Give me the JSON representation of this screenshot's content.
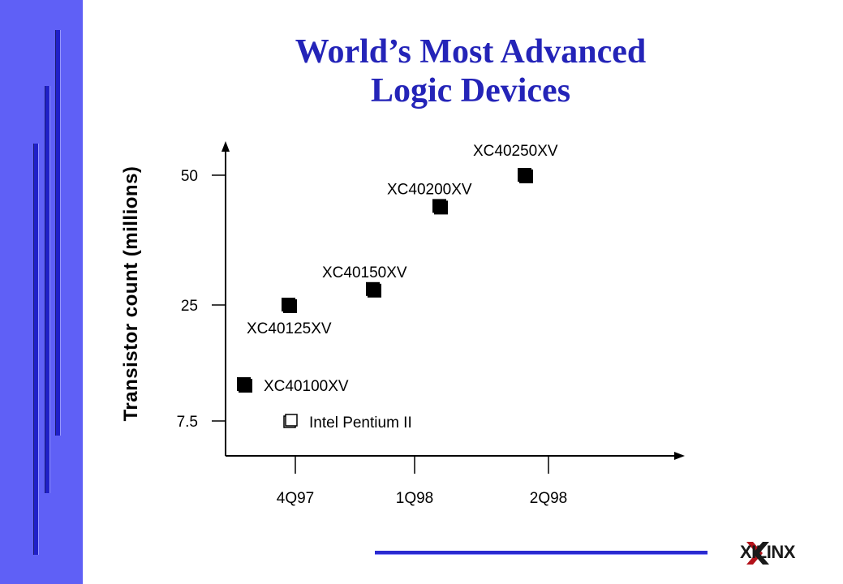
{
  "slide": {
    "title_line1": "World’s Most Advanced",
    "title_line2": "Logic Devices"
  },
  "logo": {
    "text": "XILINX"
  },
  "colors": {
    "side_panel": "#5f60f6",
    "side_bar": "#2020c8",
    "title": "#2424b8",
    "footer_line": "#2a2ad0",
    "logo_mark": "#b3121a"
  },
  "chart_data": {
    "type": "scatter",
    "ylabel": "Transistor count (millions)",
    "xlabel": "",
    "x_categories": [
      "4Q97",
      "1Q98",
      "2Q98"
    ],
    "y_ticks": [
      {
        "value": 7.5,
        "label": "7.5"
      },
      {
        "value": 25,
        "label": "25"
      },
      {
        "value": 50,
        "label": "50"
      }
    ],
    "points": [
      {
        "name": "XC40100XV",
        "x": "4Q97",
        "y": 13,
        "marker": "filled-square",
        "label_position": "right"
      },
      {
        "name": "XC40125XV",
        "x": "4Q97",
        "y": 25,
        "marker": "filled-square",
        "label_position": "below"
      },
      {
        "name": "XC40150XV",
        "x": "1Q98",
        "y": 28,
        "marker": "filled-square",
        "label_position": "above"
      },
      {
        "name": "XC40200XV",
        "x": "1Q98",
        "y": 44,
        "marker": "filled-square",
        "label_position": "above"
      },
      {
        "name": "XC40250XV",
        "x": "2Q98",
        "y": 50,
        "marker": "filled-square",
        "label_position": "above"
      },
      {
        "name": "Intel Pentium II",
        "x": "4Q97",
        "y": 7.5,
        "marker": "hollow-square",
        "label_position": "right"
      }
    ]
  }
}
